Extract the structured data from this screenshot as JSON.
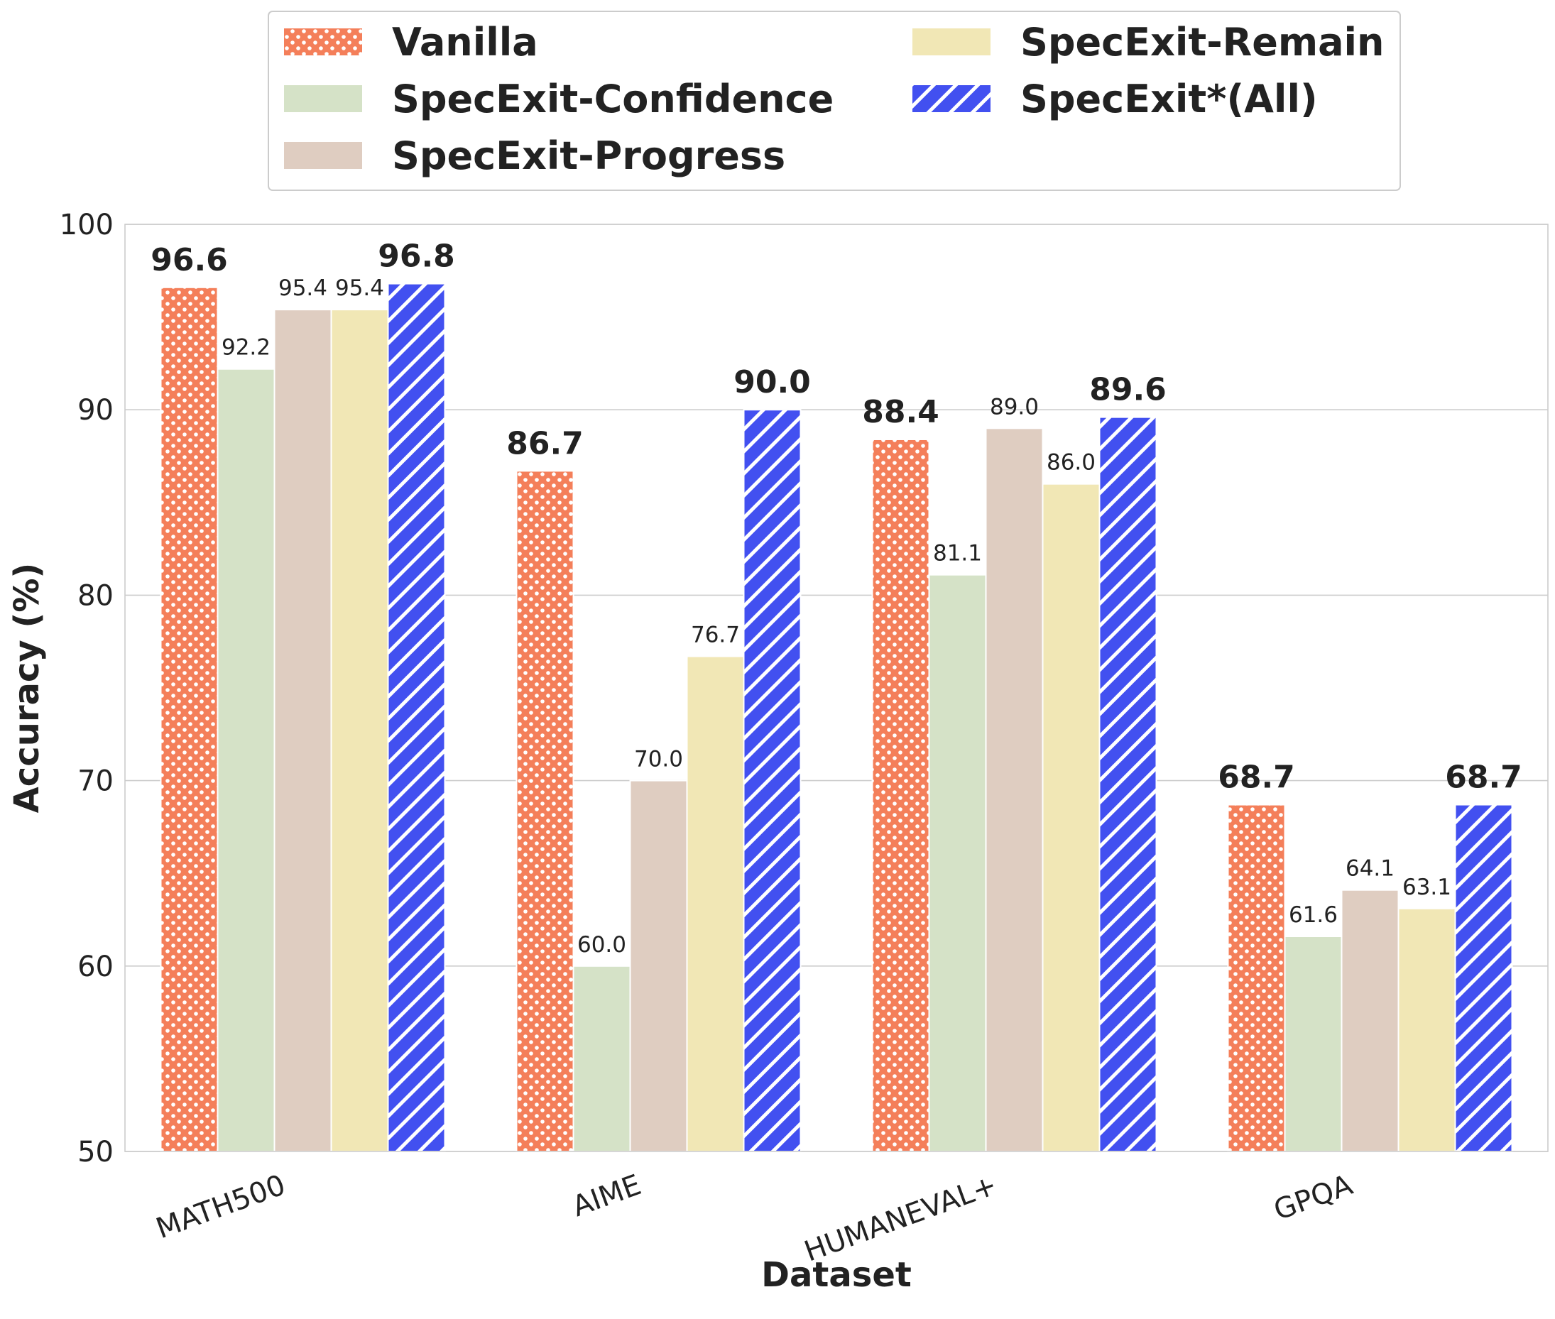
{
  "chart_data": {
    "type": "bar",
    "title": "",
    "xlabel": "Dataset",
    "ylabel": "Accuracy (%)",
    "ylim": [
      50,
      100
    ],
    "yticks": [
      50,
      60,
      70,
      80,
      90,
      100
    ],
    "ytick_labels": [
      "50",
      "60",
      "70",
      "80",
      "90",
      "100"
    ],
    "grid": true,
    "legend_position": "top-center",
    "categories": [
      "MATH500",
      "AIME",
      "HUMANEVAL+",
      "GPQA"
    ],
    "series": [
      {
        "name": "Vanilla",
        "color": "#f47f5a",
        "pattern": "dots",
        "values": [
          96.6,
          86.7,
          88.4,
          68.7
        ],
        "labels": [
          "96.6",
          "86.7",
          "88.4",
          "68.7"
        ],
        "bold_labels": [
          true,
          true,
          true,
          true
        ]
      },
      {
        "name": "SpecExit-Confidence",
        "color": "#d5e2c7",
        "pattern": "none",
        "values": [
          92.2,
          60.0,
          81.1,
          61.6
        ],
        "labels": [
          "92.2",
          "60.0",
          "81.1",
          "61.6"
        ],
        "bold_labels": [
          false,
          false,
          false,
          false
        ]
      },
      {
        "name": "SpecExit-Progress",
        "color": "#dfcdc1",
        "pattern": "none",
        "values": [
          95.4,
          70.0,
          89.0,
          64.1
        ],
        "labels": [
          "95.4",
          "70.0",
          "89.0",
          "64.1"
        ],
        "bold_labels": [
          false,
          false,
          false,
          false
        ]
      },
      {
        "name": "SpecExit-Remain",
        "color": "#f1e7b5",
        "pattern": "none",
        "values": [
          95.4,
          76.7,
          86.0,
          63.1
        ],
        "labels": [
          "95.4",
          "76.7",
          "86.0",
          "63.1"
        ],
        "bold_labels": [
          false,
          false,
          false,
          false
        ]
      },
      {
        "name": "SpecExit*(All)",
        "color": "#4250f0",
        "pattern": "hatch",
        "values": [
          96.8,
          90.0,
          89.6,
          68.7
        ],
        "labels": [
          "96.8",
          "90.0",
          "89.6",
          "68.7"
        ],
        "bold_labels": [
          true,
          true,
          true,
          true
        ]
      }
    ],
    "legend_order": [
      0,
      3,
      1,
      4,
      2
    ]
  }
}
